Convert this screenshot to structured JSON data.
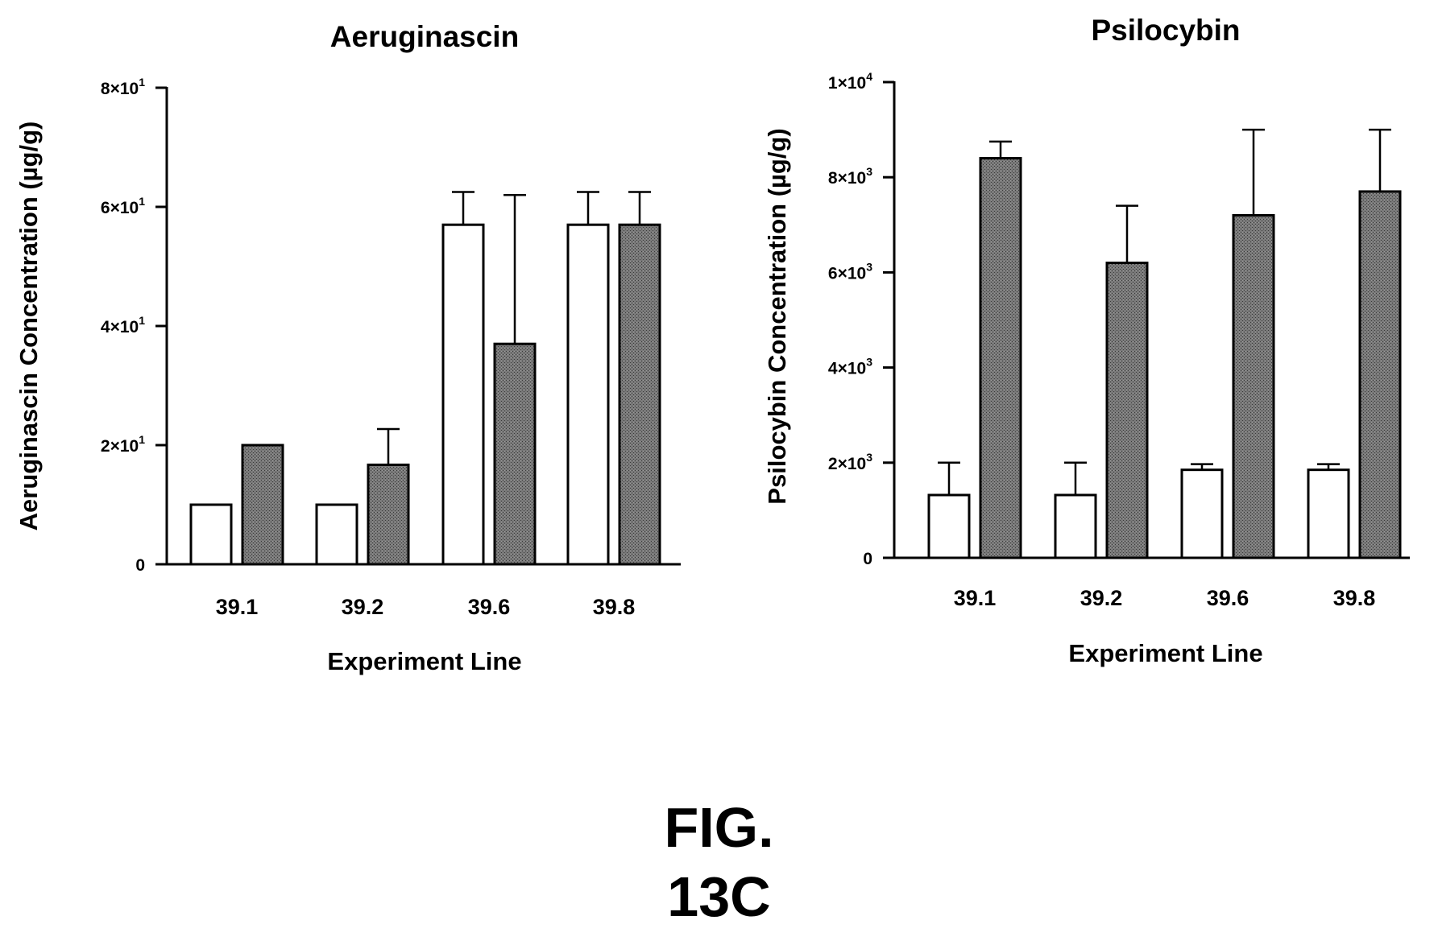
{
  "figure_label": [
    "FIG.",
    "13C"
  ],
  "colors": {
    "open_bar": "#ffffff",
    "filled_bar": "#6f6f6f",
    "stroke": "#000000"
  },
  "chart_data": [
    {
      "type": "bar",
      "title": "Aeruginascin",
      "xlabel": "Experiment Line",
      "ylabel": "Aeruginascin Concentration (µg/g)",
      "categories": [
        "39.1",
        "39.2",
        "39.6",
        "39.8"
      ],
      "ylim": [
        0,
        80
      ],
      "yticks": [
        {
          "value": 0,
          "mantissa": "0",
          "exp": ""
        },
        {
          "value": 20,
          "mantissa": "2×10",
          "exp": "1"
        },
        {
          "value": 40,
          "mantissa": "4×10",
          "exp": "1"
        },
        {
          "value": 60,
          "mantissa": "6×10",
          "exp": "1"
        },
        {
          "value": 80,
          "mantissa": "8×10",
          "exp": "1"
        }
      ],
      "grid": false,
      "series": [
        {
          "fill": "open",
          "values": [
            10,
            10,
            57,
            57
          ],
          "errors": [
            0,
            0,
            5.5,
            5.5
          ]
        },
        {
          "fill": "filled",
          "values": [
            20,
            16.7,
            37,
            57
          ],
          "errors": [
            0,
            6,
            25,
            5.5
          ]
        }
      ]
    },
    {
      "type": "bar",
      "title": "Psilocybin",
      "xlabel": "Experiment Line",
      "ylabel": "Psilocybin Concentration (µg/g)",
      "categories": [
        "39.1",
        "39.2",
        "39.6",
        "39.8"
      ],
      "ylim": [
        0,
        10000
      ],
      "yticks": [
        {
          "value": 0,
          "mantissa": "0",
          "exp": ""
        },
        {
          "value": 2000,
          "mantissa": "2×10",
          "exp": "3"
        },
        {
          "value": 4000,
          "mantissa": "4×10",
          "exp": "3"
        },
        {
          "value": 6000,
          "mantissa": "6×10",
          "exp": "3"
        },
        {
          "value": 8000,
          "mantissa": "8×10",
          "exp": "3"
        },
        {
          "value": 10000,
          "mantissa": "1×10",
          "exp": "4"
        }
      ],
      "grid": false,
      "series": [
        {
          "fill": "open",
          "values": [
            1320,
            1320,
            1850,
            1850
          ],
          "errors": [
            680,
            680,
            120,
            120
          ]
        },
        {
          "fill": "filled",
          "values": [
            8400,
            6200,
            7200,
            7700
          ],
          "errors": [
            350,
            1200,
            1800,
            1300
          ]
        }
      ]
    }
  ]
}
